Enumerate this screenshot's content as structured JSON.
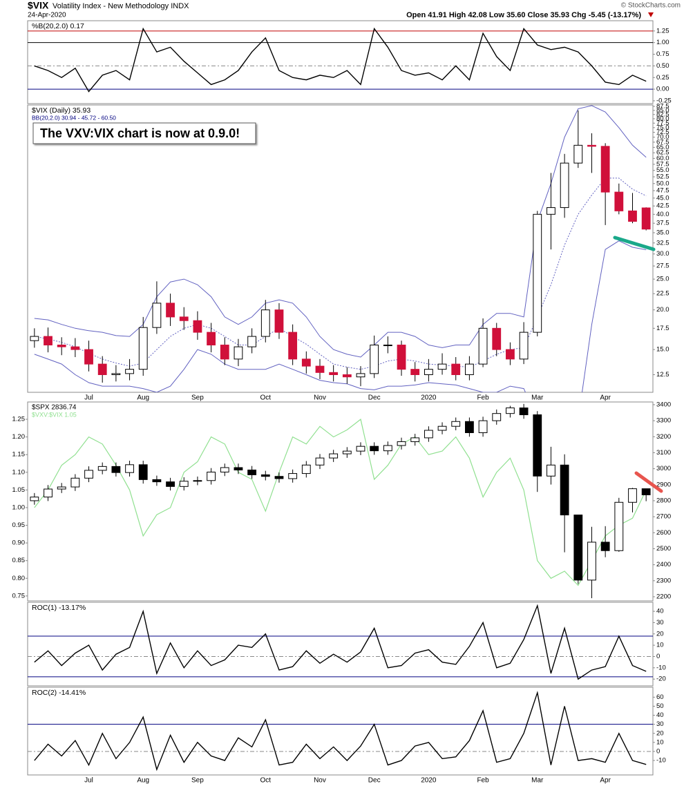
{
  "header": {
    "symbol": "$VIX",
    "name": "Volatility Index - New Methodology INDX",
    "date": "24-Apr-2020",
    "quote": "Open 41.91  High 42.08  Low 35.60  Close 35.93  Chg -5.45 (-13.17%)",
    "credit": "© StockCharts.com"
  },
  "chart_data": [
    {
      "type": "line",
      "title": "%B(20,2.0) 0.17",
      "color": "#000000",
      "values": [
        0.5,
        0.4,
        0.25,
        0.45,
        -0.05,
        0.3,
        0.4,
        0.2,
        1.3,
        0.8,
        0.9,
        0.6,
        0.35,
        0.1,
        0.2,
        0.4,
        0.8,
        1.1,
        0.4,
        0.25,
        0.2,
        0.3,
        0.25,
        0.4,
        0.1,
        1.3,
        0.9,
        0.4,
        0.3,
        0.35,
        0.2,
        0.5,
        0.2,
        1.2,
        0.7,
        0.4,
        1.3,
        0.95,
        0.85,
        0.9,
        0.8,
        0.5,
        0.15,
        0.1,
        0.3,
        0.17
      ],
      "ylim": [
        -0.31,
        1.47
      ],
      "yticks": [
        -0.25,
        {
          "value": 0,
          "label": "0.00"
        },
        0.25,
        {
          "value": 0.5,
          "label": "0.50"
        },
        0.75,
        {
          "value": 1,
          "label": "1.00"
        },
        1.25
      ],
      "hlines": [
        {
          "value": 1.25,
          "color": "#c00000",
          "dash": false
        },
        {
          "value": 1,
          "color": "#000000",
          "dash": false
        },
        {
          "value": 0.5,
          "color": "#888888",
          "dash": true
        },
        {
          "value": 0,
          "color": "#000080",
          "dash": false
        }
      ]
    },
    {
      "type": "candlestick",
      "title": "$VIX (Daily) 35.93",
      "subtitle": "BB(20,2.0) 30.94 - 45.72 - 60.50",
      "annotation": "The VXV:VIX chart is now at 0.9.0!",
      "log_scale": true,
      "up_color": "#ffffff",
      "down_color": "#d0103a",
      "categories": [
        null,
        null,
        null,
        null,
        "Jul",
        null,
        null,
        null,
        "Aug",
        null,
        null,
        null,
        "Sep",
        null,
        null,
        null,
        null,
        "Oct",
        null,
        null,
        null,
        "Nov",
        null,
        null,
        null,
        "Dec",
        null,
        null,
        null,
        "2020",
        null,
        null,
        null,
        "Feb",
        null,
        null,
        null,
        "Mar",
        null,
        null,
        null,
        null,
        "Apr",
        null,
        null,
        null
      ],
      "open": [
        16,
        16.5,
        15.5,
        15.3,
        15,
        13.5,
        12.5,
        12.6,
        13,
        17.6,
        21,
        19,
        18.5,
        17,
        15.5,
        14,
        15.3,
        16.5,
        20,
        17,
        14,
        13.3,
        12.7,
        12.5,
        12.3,
        12.6,
        15.5,
        15.5,
        13,
        12.5,
        13,
        13.5,
        12.5,
        13.5,
        17.5,
        15,
        14,
        17,
        40,
        42,
        58,
        66,
        65.5,
        47,
        41,
        41.91
      ],
      "high": [
        17.5,
        17.6,
        16.4,
        16.3,
        16,
        14.3,
        13.4,
        14,
        19,
        24.6,
        22.5,
        20.4,
        19.8,
        18.2,
        16.4,
        16.2,
        17.5,
        21.5,
        21,
        18,
        14.8,
        14,
        13.4,
        13.2,
        13.3,
        16.6,
        16.5,
        16,
        13.7,
        14,
        14.6,
        14.2,
        14.3,
        18.8,
        18.2,
        15.8,
        18.3,
        41,
        54,
        62,
        85,
        72,
        67,
        50,
        46.7,
        42.08
      ],
      "low": [
        15.2,
        14.7,
        14.4,
        14.2,
        12.8,
        11.8,
        11.9,
        12,
        12.4,
        16.8,
        17.8,
        17.3,
        16.1,
        14.7,
        13.4,
        13.3,
        14.6,
        15.8,
        16.2,
        13.4,
        12.6,
        12.1,
        11.9,
        11.7,
        11.5,
        12.2,
        14.6,
        12.4,
        11.9,
        11.9,
        12.5,
        12,
        12,
        13.2,
        14.3,
        13.4,
        13.5,
        16.5,
        31,
        39,
        56,
        54,
        37,
        40,
        37.5,
        35.6
      ],
      "close": [
        16.5,
        15.5,
        15.3,
        15,
        13.5,
        12.5,
        12.6,
        13,
        17.6,
        21,
        19,
        18.5,
        17,
        15.5,
        14,
        15.3,
        16.5,
        20,
        17,
        14,
        13.3,
        12.7,
        12.5,
        12.3,
        12.6,
        15.5,
        15.5,
        13,
        12.5,
        13,
        13.5,
        12.5,
        13.5,
        17.5,
        15,
        14,
        17,
        40,
        42,
        58,
        66,
        65.5,
        47,
        41,
        38,
        35.93
      ],
      "bands": {
        "color": "#6060c0",
        "upper": [
          18.8,
          18.6,
          18,
          17.5,
          17.2,
          17,
          16.6,
          16.5,
          18,
          22,
          24.5,
          25,
          24,
          22,
          19,
          18,
          19,
          21,
          21.5,
          21,
          19,
          16.5,
          15,
          14.5,
          14.2,
          15.5,
          17,
          17,
          16.5,
          15.5,
          15.2,
          15.5,
          15.5,
          18,
          19.5,
          19.5,
          19,
          38,
          50,
          70,
          86,
          88,
          84,
          75,
          66,
          60.5
        ],
        "middle": [
          16.5,
          16.2,
          15.8,
          15.3,
          14.6,
          14,
          13.6,
          13.3,
          13.6,
          15,
          16.5,
          17.5,
          18,
          17.5,
          16.5,
          15.5,
          15.5,
          16.5,
          17.5,
          16.5,
          15.6,
          14.5,
          13.5,
          13.2,
          13,
          13.3,
          13.8,
          14,
          13.8,
          13.5,
          13.4,
          13.3,
          13.2,
          13.8,
          14.5,
          15,
          15.2,
          19,
          24,
          32,
          40,
          46,
          52,
          52,
          48,
          45.72
        ],
        "lower": [
          14.5,
          14,
          13.5,
          12.5,
          11.8,
          11.5,
          11.5,
          11.5,
          11.3,
          11,
          11.5,
          13,
          15,
          14.5,
          13.5,
          13,
          13,
          13,
          13.5,
          13,
          12.5,
          12,
          11.8,
          11.7,
          11.3,
          11.2,
          11.5,
          11.5,
          11.6,
          11.8,
          11.7,
          11.6,
          11.3,
          11,
          11,
          11.5,
          11.3,
          9,
          7,
          6,
          9,
          18,
          31,
          33,
          31.5,
          30.94
        ]
      },
      "ylim": [
        11,
        88.4
      ],
      "yticks": [
        12.5,
        {
          "value": 15,
          "label": "15.0"
        },
        17.5,
        {
          "value": 20,
          "label": "20.0"
        },
        22.5,
        {
          "value": 25,
          "label": "25.0"
        },
        27.5,
        {
          "value": 30,
          "label": "30.0"
        },
        32.5,
        {
          "value": 35,
          "label": "35.0"
        },
        37.5,
        {
          "value": 40,
          "label": "40.0"
        },
        42.5,
        {
          "value": 45,
          "label": "45.0"
        },
        47.5,
        {
          "value": 50,
          "label": "50.0"
        },
        52.5,
        {
          "value": 55,
          "label": "55.0"
        },
        57.5,
        {
          "value": 60,
          "label": "60.0"
        },
        62.5,
        {
          "value": 65,
          "label": "65.0"
        },
        67.5,
        {
          "value": 70,
          "label": "70.0"
        },
        72.5,
        {
          "value": 75,
          "label": "75.0"
        },
        77.5,
        {
          "value": 80,
          "label": "80.0"
        },
        82.5,
        {
          "value": 85,
          "label": "85.0"
        },
        87.5
      ]
    },
    {
      "type": "candlestick",
      "name": "$SPX 2836.74",
      "up_color": "#ffffff",
      "down_color": "#000000",
      "open": [
        2800,
        2823,
        2873,
        2886,
        2941,
        2990,
        3014,
        2976,
        3025,
        2932,
        2918,
        2889,
        2922,
        2926,
        2979,
        3007,
        2992,
        2962,
        2952,
        2938,
        2970,
        3023,
        3067,
        3093,
        3110,
        3140,
        3112,
        3145,
        3169,
        3193,
        3240,
        3265,
        3295,
        3225,
        3300,
        3345,
        3380,
        3337,
        2954,
        3023,
        2711,
        2304,
        2541,
        2488,
        2790,
        2875
      ],
      "high": [
        2848,
        2898,
        2911,
        2966,
        3015,
        3039,
        3039,
        3050,
        3050,
        2957,
        2943,
        2947,
        2951,
        3004,
        3032,
        3032,
        3017,
        2987,
        2977,
        2995,
        3048,
        3092,
        3118,
        3135,
        3165,
        3165,
        3170,
        3194,
        3218,
        3265,
        3290,
        3320,
        3320,
        3325,
        3370,
        3393,
        3405,
        3360,
        3137,
        3090,
        2711,
        2637,
        2641,
        2818,
        2880,
        2869
      ],
      "low": [
        2775,
        2798,
        2848,
        2861,
        2916,
        2965,
        2951,
        2951,
        2907,
        2893,
        2864,
        2864,
        2897,
        2901,
        2954,
        2967,
        2937,
        2927,
        2913,
        2913,
        2945,
        2998,
        3042,
        3068,
        3085,
        3087,
        3087,
        3120,
        3144,
        3168,
        3215,
        3240,
        3200,
        3200,
        3275,
        3320,
        3312,
        2855,
        2901,
        2478,
        2280,
        2191,
        2447,
        2481,
        2727,
        2797
      ],
      "close": [
        2823,
        2873,
        2886,
        2941,
        2990,
        3014,
        2976,
        3025,
        2932,
        2918,
        2889,
        2922,
        2926,
        2979,
        3007,
        2992,
        2962,
        2952,
        2938,
        2970,
        3023,
        3067,
        3093,
        3110,
        3140,
        3112,
        3145,
        3169,
        3193,
        3240,
        3265,
        3295,
        3225,
        3300,
        3345,
        3380,
        3337,
        2954,
        3023,
        2711,
        2304,
        2541,
        2488,
        2790,
        2875,
        2836.74
      ],
      "ylim": [
        2174,
        3417
      ],
      "yticks": [
        2200,
        2300,
        2400,
        2500,
        2600,
        2700,
        2800,
        2900,
        3000,
        3100,
        3200,
        3300,
        3400
      ],
      "series": [
        {
          "name": "$VXV:$VIX 1.05",
          "color": "#90e090",
          "axis": "y2",
          "values": [
            1.0,
            1.05,
            1.12,
            1.15,
            1.2,
            1.18,
            1.12,
            1.05,
            0.92,
            0.98,
            1.0,
            1.1,
            1.13,
            1.2,
            1.18,
            1.1,
            1.08,
            0.99,
            1.1,
            1.2,
            1.18,
            1.23,
            1.2,
            1.22,
            1.25,
            1.08,
            1.12,
            1.18,
            1.2,
            1.15,
            1.16,
            1.2,
            1.14,
            1.03,
            1.1,
            1.14,
            1.05,
            0.85,
            0.8,
            0.82,
            0.78,
            0.85,
            0.92,
            0.95,
            0.97,
            1.05
          ]
        }
      ],
      "y2lim": [
        0.736,
        1.299
      ],
      "y2ticks": [
        0.75,
        {
          "value": 0.8,
          "label": "0.80"
        },
        0.85,
        {
          "value": 0.9,
          "label": "0.90"
        },
        0.95,
        {
          "value": 1,
          "label": "1.00"
        },
        1.05,
        {
          "value": 1.1,
          "label": "1.10"
        },
        1.15,
        {
          "value": 1.2,
          "label": "1.20"
        },
        1.25
      ]
    },
    {
      "type": "line",
      "title": "ROC(1) -13.17%",
      "color": "#000000",
      "values": [
        -5,
        5,
        -8,
        3,
        10,
        -12,
        2,
        8,
        40,
        -15,
        12,
        -10,
        5,
        -8,
        -3,
        10,
        8,
        20,
        -12,
        -9,
        5,
        -6,
        2,
        -5,
        4,
        25,
        -10,
        -8,
        3,
        6,
        -5,
        -7,
        9,
        30,
        -10,
        -6,
        15,
        45,
        -15,
        25,
        -20,
        -12,
        -9,
        18,
        -8,
        -13.17
      ],
      "ylim": [
        -26,
        48
      ],
      "yticks": [
        -20,
        -10,
        0,
        10,
        20,
        30,
        40
      ],
      "hlines": [
        {
          "value": 18,
          "color": "#000080",
          "dash": false
        },
        {
          "value": 0,
          "color": "#888888",
          "dash": true
        },
        {
          "value": -18,
          "color": "#000080",
          "dash": false
        }
      ]
    },
    {
      "type": "line",
      "title": "ROC(2) -14.41%",
      "color": "#000000",
      "categories": [
        null,
        null,
        null,
        null,
        "Jul",
        null,
        null,
        null,
        "Aug",
        null,
        null,
        null,
        "Sep",
        null,
        null,
        null,
        null,
        "Oct",
        null,
        null,
        null,
        "Nov",
        null,
        null,
        null,
        "Dec",
        null,
        null,
        null,
        "2020",
        null,
        null,
        null,
        "Feb",
        null,
        null,
        null,
        "Mar",
        null,
        null,
        null,
        null,
        "Apr",
        null,
        null,
        null
      ],
      "values": [
        -10,
        8,
        -5,
        12,
        -15,
        20,
        -8,
        10,
        38,
        -20,
        18,
        -12,
        10,
        -5,
        -10,
        15,
        5,
        35,
        -15,
        -12,
        8,
        -8,
        5,
        -10,
        6,
        30,
        -15,
        -10,
        6,
        10,
        -8,
        -6,
        12,
        45,
        -12,
        -8,
        20,
        65,
        -15,
        50,
        -10,
        -8,
        -12,
        20,
        -10,
        -14.41
      ],
      "ylim": [
        -26,
        71
      ],
      "yticks": [
        -10,
        0,
        10,
        20,
        30,
        40,
        50,
        60
      ],
      "hlines": [
        {
          "value": 30,
          "color": "#000080",
          "dash": false
        },
        {
          "value": 0,
          "color": "#888888",
          "dash": true
        }
      ]
    }
  ]
}
